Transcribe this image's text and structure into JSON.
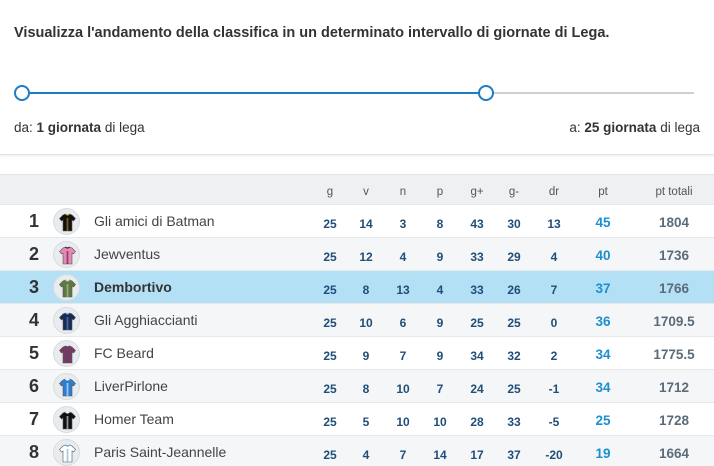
{
  "range": {
    "title": "Visualizza l'andamento della classifica in un determinato intervallo di giornate di Lega.",
    "from_prefix": "da:",
    "from_value": "1 giornata",
    "from_suffix": "di lega",
    "to_prefix": "a:",
    "to_value": "25 giornata",
    "to_suffix": "di lega",
    "slider_fill_fraction": 0.69,
    "accent_color": "#1d7cc4"
  },
  "table": {
    "headers": [
      "g",
      "v",
      "n",
      "p",
      "g+",
      "g-",
      "dr",
      "pt",
      "pt totali"
    ],
    "rows": [
      {
        "pos": "1",
        "team": "Gli amici di Batman",
        "g": "25",
        "v": "14",
        "n": "3",
        "p": "8",
        "gf": "43",
        "ga": "30",
        "dr": "13",
        "pt": "45",
        "tot": "1804",
        "jersey": "#111111",
        "trim": "#d4a017"
      },
      {
        "pos": "2",
        "team": "Jewventus",
        "g": "25",
        "v": "12",
        "n": "4",
        "p": "9",
        "gf": "33",
        "ga": "29",
        "dr": "4",
        "pt": "40",
        "tot": "1736",
        "jersey": "#e986b5",
        "trim": "#222222"
      },
      {
        "pos": "3",
        "team": "Dembortivo",
        "g": "25",
        "v": "8",
        "n": "13",
        "p": "4",
        "gf": "33",
        "ga": "26",
        "dr": "7",
        "pt": "37",
        "tot": "1766",
        "jersey": "#5c7a3a",
        "trim": "#c8c8c8"
      },
      {
        "pos": "4",
        "team": "Gli Agghiaccianti",
        "g": "25",
        "v": "10",
        "n": "6",
        "p": "9",
        "gf": "25",
        "ga": "25",
        "dr": "0",
        "pt": "36",
        "tot": "1709.5",
        "jersey": "#1b2a55",
        "trim": "#5aa0d8"
      },
      {
        "pos": "5",
        "team": "FC Beard",
        "g": "25",
        "v": "9",
        "n": "7",
        "p": "9",
        "gf": "34",
        "ga": "32",
        "dr": "2",
        "pt": "34",
        "tot": "1775.5",
        "jersey": "#7a3a5c",
        "trim": "#3a4a8a"
      },
      {
        "pos": "6",
        "team": "LiverPirlone",
        "g": "25",
        "v": "8",
        "n": "10",
        "p": "7",
        "gf": "24",
        "ga": "25",
        "dr": "-1",
        "pt": "34",
        "tot": "1712",
        "jersey": "#2a7fd0",
        "trim": "#ffffff"
      },
      {
        "pos": "7",
        "team": "Homer Team",
        "g": "25",
        "v": "5",
        "n": "10",
        "p": "10",
        "gf": "28",
        "ga": "33",
        "dr": "-5",
        "pt": "25",
        "tot": "1728",
        "jersey": "#111111",
        "trim": "#ffffff"
      },
      {
        "pos": "8",
        "team": "Paris Saint-Jeannelle",
        "g": "25",
        "v": "4",
        "n": "7",
        "p": "14",
        "gf": "17",
        "ga": "37",
        "dr": "-20",
        "pt": "19",
        "tot": "1664",
        "jersey": "#ffffff",
        "trim": "#5aa0d8"
      }
    ]
  }
}
